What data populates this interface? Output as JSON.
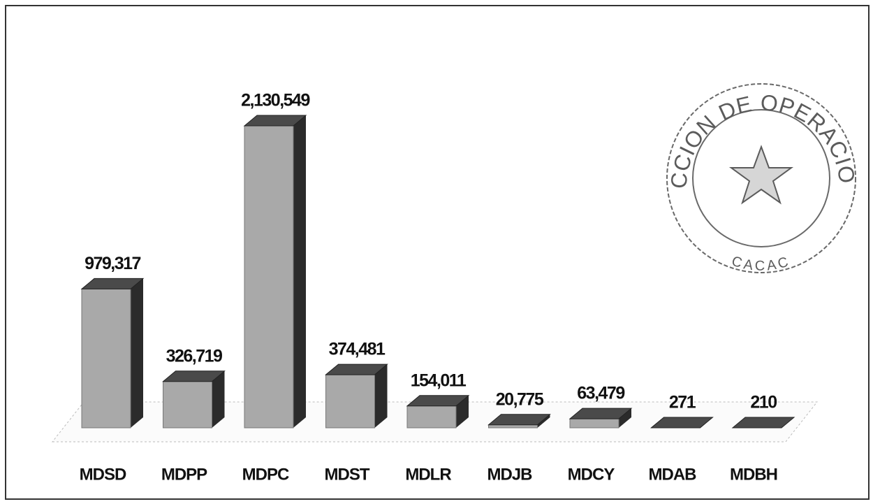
{
  "chart_data": {
    "type": "bar3d",
    "categories": [
      "MDSD",
      "MDPP",
      "MDPC",
      "MDST",
      "MDLR",
      "MDJB",
      "MDCY",
      "MDAB",
      "MDBH"
    ],
    "values": [
      979317,
      326719,
      2130549,
      374481,
      154011,
      20775,
      63479,
      271,
      210
    ],
    "value_labels": [
      "979,317",
      "326,719",
      "2,130,549",
      "374,481",
      "154,011",
      "20,775",
      "63,479",
      "271",
      "210"
    ],
    "color": "#a9a9a9"
  },
  "stamp": {
    "top": "CCION DE OPERACIONES",
    "bottom": "CACAC"
  }
}
